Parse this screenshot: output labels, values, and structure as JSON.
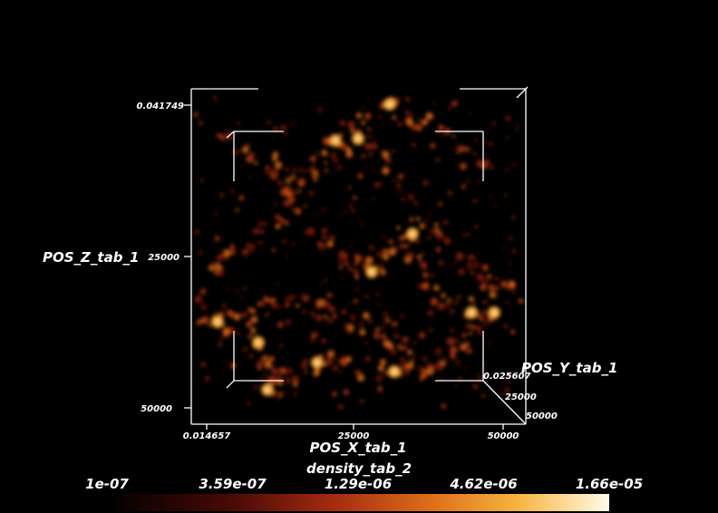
{
  "axes": {
    "x": {
      "title": "POS_X_tab_1",
      "ticks": [
        "0.014657",
        "25000",
        "50000"
      ]
    },
    "y": {
      "title": "POS_Y_tab_1",
      "ticks": [
        "0.025607",
        "25000",
        "50000"
      ]
    },
    "z": {
      "title": "POS_Z_tab_1",
      "ticks": [
        "0.041749",
        "25000",
        "50000"
      ]
    }
  },
  "colorbar": {
    "title": "density_tab_2",
    "labels": [
      "1e-07",
      "3.59e-07",
      "1.29e-06",
      "4.62e-06",
      "1.66e-05"
    ]
  }
}
